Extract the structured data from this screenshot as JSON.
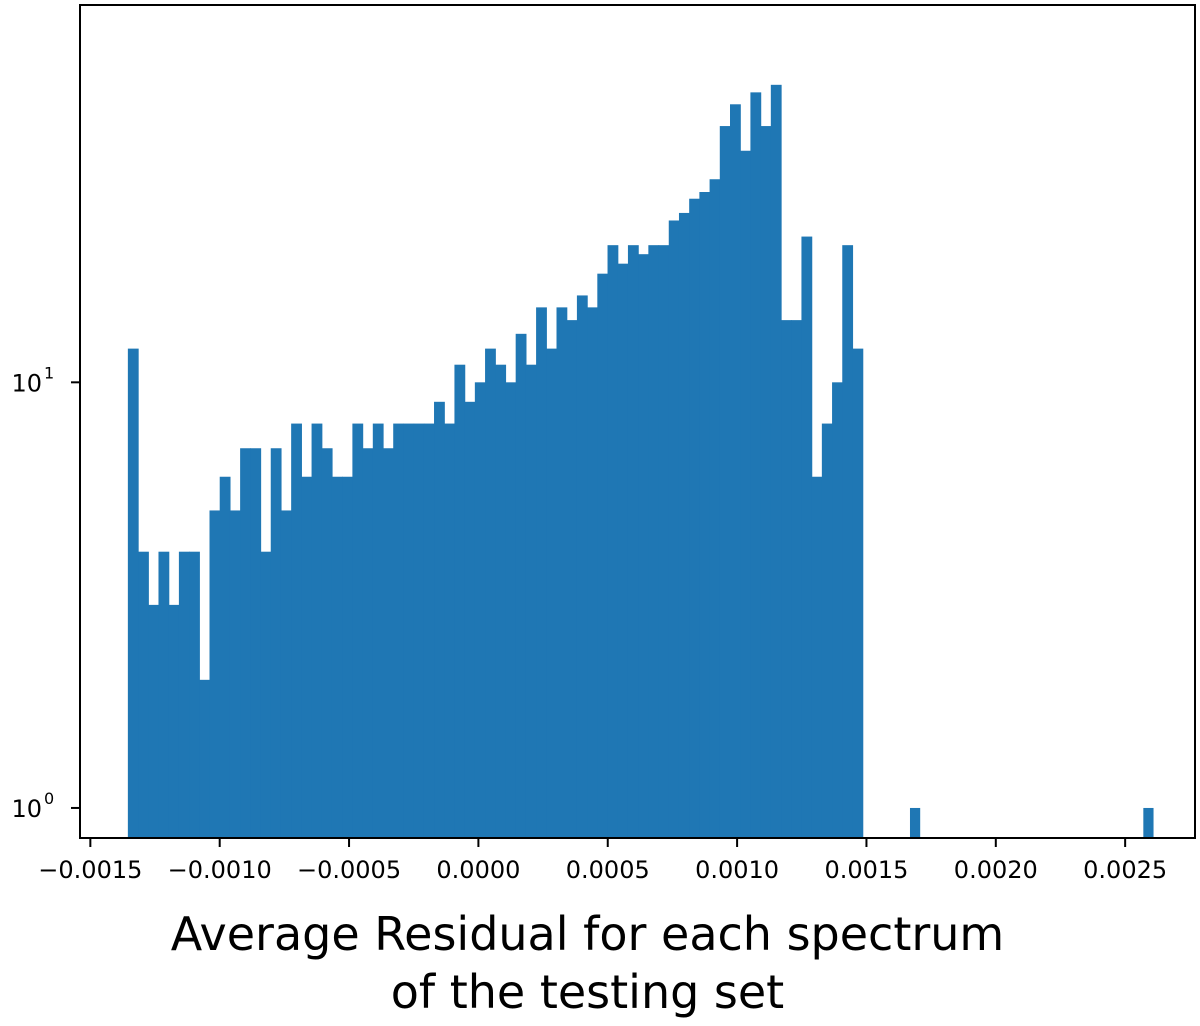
{
  "chart_data": {
    "type": "bar",
    "title": "",
    "xlabel": [
      "Average Residual for each spectrum",
      "of the testing set"
    ],
    "ylabel": "",
    "yscale": "log",
    "ylim": [
      0.85,
      77
    ],
    "xlim": [
      -0.00154,
      0.00277
    ],
    "grid": false,
    "color": "#1f77b4",
    "x_ticks": [
      -0.0015,
      -0.001,
      -0.0005,
      0.0,
      0.0005,
      0.001,
      0.0015,
      0.002,
      0.0025
    ],
    "x_tick_labels": [
      "−0.0015",
      "−0.0010",
      "−0.0005",
      "0.0000",
      "0.0005",
      "0.0010",
      "0.0015",
      "0.0020",
      "0.0025"
    ],
    "y_ticks": [
      {
        "value": 1,
        "base": "10",
        "exp": "0"
      },
      {
        "value": 10,
        "base": "10",
        "exp": "1"
      }
    ],
    "bin_start": -0.001355,
    "bin_width": 3.945e-05,
    "counts": [
      12,
      4,
      3,
      4,
      3,
      4,
      4,
      2,
      5,
      6,
      5,
      7,
      7,
      4,
      7,
      5,
      8,
      6,
      8,
      7,
      6,
      6,
      8,
      7,
      8,
      7,
      8,
      8,
      8,
      8,
      9,
      8,
      11,
      9,
      10,
      12,
      11,
      10,
      13,
      11,
      15,
      12,
      15,
      14,
      16,
      15,
      18,
      21,
      19,
      21,
      20,
      21,
      21,
      24,
      25,
      27,
      28,
      30,
      40,
      45,
      35,
      48,
      40,
      50,
      14,
      14,
      22,
      6,
      8,
      10,
      21,
      12
    ],
    "outliers": [
      {
        "x": 0.001688,
        "count": 1
      },
      {
        "x": 0.00259,
        "count": 1
      }
    ]
  }
}
